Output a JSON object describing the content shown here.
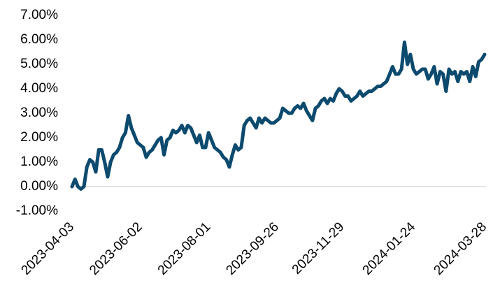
{
  "chart_data": {
    "type": "line",
    "categories": [
      "2023-04-03",
      null,
      null,
      null,
      null,
      null,
      null,
      null,
      null,
      null,
      null,
      null,
      null,
      null,
      null,
      null,
      null,
      null,
      null,
      null,
      null,
      null,
      null,
      "2023-06-02",
      null,
      null,
      null,
      null,
      null,
      null,
      null,
      null,
      null,
      null,
      null,
      null,
      null,
      null,
      null,
      null,
      null,
      null,
      null,
      null,
      null,
      null,
      "2023-08-01",
      null,
      null,
      null,
      null,
      null,
      null,
      null,
      null,
      null,
      null,
      null,
      null,
      null,
      null,
      null,
      null,
      null,
      null,
      null,
      null,
      null,
      null,
      "2023-09-26",
      null,
      null,
      null,
      null,
      null,
      null,
      null,
      null,
      null,
      null,
      null,
      null,
      null,
      null,
      null,
      null,
      null,
      null,
      null,
      null,
      null,
      "2023-11-29",
      null,
      null,
      null,
      null,
      null,
      null,
      null,
      null,
      null,
      null,
      null,
      null,
      null,
      null,
      null,
      null,
      null,
      null,
      null,
      null,
      null,
      null,
      null,
      "2024-01-24",
      null,
      null,
      null,
      null,
      null,
      null,
      null,
      null,
      null,
      null,
      null,
      null,
      null,
      null,
      null,
      null,
      null,
      null,
      null,
      null,
      null,
      null,
      null,
      "2024-03-28"
    ],
    "values": [
      0.0,
      0.3,
      0.0,
      -0.1,
      0.0,
      0.8,
      1.1,
      1.0,
      0.6,
      1.5,
      1.5,
      1.0,
      0.4,
      1.0,
      1.3,
      1.4,
      1.6,
      2.0,
      2.2,
      2.9,
      2.4,
      2.1,
      1.8,
      1.7,
      1.6,
      1.2,
      1.4,
      1.5,
      1.7,
      1.9,
      2.0,
      1.3,
      1.9,
      2.0,
      2.3,
      2.2,
      2.3,
      2.5,
      2.2,
      2.5,
      2.4,
      2.1,
      1.8,
      2.1,
      1.6,
      1.6,
      2.2,
      1.9,
      1.6,
      1.5,
      1.4,
      1.2,
      1.1,
      0.8,
      1.3,
      1.7,
      1.5,
      1.6,
      2.5,
      2.7,
      2.8,
      2.6,
      2.4,
      2.8,
      2.6,
      2.8,
      2.7,
      2.6,
      2.6,
      2.7,
      2.8,
      3.2,
      3.1,
      3.0,
      3.0,
      3.2,
      3.3,
      3.2,
      3.4,
      3.1,
      2.9,
      2.7,
      3.2,
      3.3,
      3.5,
      3.6,
      3.4,
      3.6,
      3.5,
      3.8,
      4.0,
      3.9,
      3.7,
      3.7,
      3.5,
      3.6,
      3.7,
      3.9,
      3.7,
      3.8,
      3.9,
      3.9,
      4.0,
      4.1,
      4.1,
      4.2,
      4.3,
      4.6,
      4.9,
      4.6,
      4.6,
      4.8,
      5.9,
      5.0,
      5.4,
      4.8,
      4.6,
      4.7,
      4.8,
      4.8,
      4.4,
      4.6,
      4.9,
      4.2,
      4.7,
      4.6,
      3.9,
      4.8,
      4.6,
      4.7,
      4.3,
      4.7,
      4.6,
      4.7,
      4.3,
      4.9,
      4.5,
      5.1,
      5.2,
      5.4
    ],
    "color": "#0c4a6e",
    "ylim": [
      -1,
      7
    ],
    "yticks": [
      {
        "value": -1,
        "label": "-1.00%"
      },
      {
        "value": 0,
        "label": "0.00%"
      },
      {
        "value": 1,
        "label": "1.00%"
      },
      {
        "value": 2,
        "label": "2.00%"
      },
      {
        "value": 3,
        "label": "3.00%"
      },
      {
        "value": 4,
        "label": "4.00%"
      },
      {
        "value": 5,
        "label": "5.00%"
      },
      {
        "value": 6,
        "label": "6.00%"
      },
      {
        "value": 7,
        "label": "7.00%"
      }
    ],
    "grid": false
  }
}
